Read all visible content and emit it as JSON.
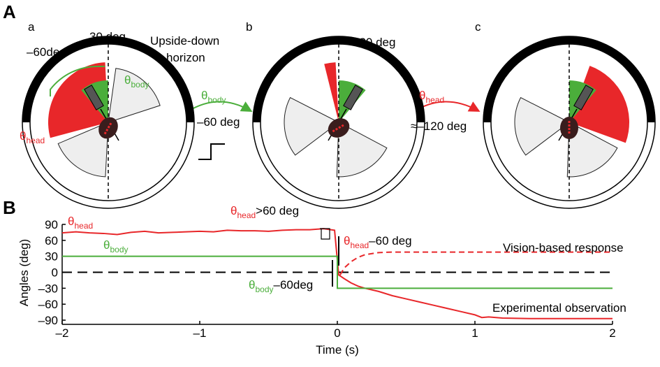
{
  "panel_labels": [
    "A",
    "B"
  ],
  "panel_a": {
    "letters": [
      "a",
      "b",
      "c"
    ],
    "texts": [
      {
        "parts": [
          "30 deg"
        ],
        "colors": [
          "#000"
        ]
      },
      {
        "parts": [
          "–60deg"
        ],
        "colors": [
          "#000"
        ]
      },
      {
        "parts": [
          "Upside-down"
        ],
        "colors": [
          "#000"
        ]
      },
      {
        "parts": [
          "horizon"
        ],
        "colors": [
          "#000"
        ]
      },
      {
        "parts": [
          "θ",
          "body"
        ],
        "colors": [
          "#4bae3b",
          "#4bae3b"
        ]
      },
      {
        "parts": [
          "θ",
          "head"
        ],
        "colors": [
          "#e8272a",
          "#e8272a"
        ]
      },
      {
        "parts": [
          "–30 deg"
        ],
        "colors": [
          "#000"
        ]
      },
      {
        "parts": [
          "θ",
          "body"
        ],
        "colors": [
          "#4bae3b",
          "#4bae3b"
        ]
      },
      {
        "parts": [
          "–60 deg"
        ],
        "colors": [
          "#000"
        ]
      },
      {
        "parts": [
          "θ",
          "head"
        ],
        "colors": [
          "#e8272a",
          "#e8272a"
        ]
      },
      {
        "parts": [
          "≈–120 deg"
        ],
        "colors": [
          "#000"
        ]
      }
    ]
  },
  "chart_data": {
    "type": "line",
    "xlabel": "Time (s)",
    "ylabel": "Angles (deg)",
    "xlim": [
      -2,
      2
    ],
    "xticks": [
      {
        "value": -2,
        "label": "–2"
      },
      {
        "value": -1,
        "label": "–1"
      },
      0,
      1,
      2
    ],
    "ylim": [
      -90,
      90
    ],
    "yticks": [
      {
        "value": -90,
        "label": "–90"
      },
      {
        "value": -60,
        "label": "–60"
      },
      {
        "value": -30,
        "label": "–30"
      },
      0,
      30,
      60,
      90
    ],
    "zero_line": true,
    "series": [
      {
        "color": "#e8272a",
        "dash": false,
        "x": [
          -2,
          -1.9,
          -1.8,
          -1.7,
          -1.6,
          -1.5,
          -1.4,
          -1.3,
          -1.2,
          -1.1,
          -1,
          -0.9,
          -0.8,
          -0.7,
          -0.6,
          -0.5,
          -0.4,
          -0.3,
          -0.2,
          -0.1,
          -0.02,
          0.01,
          0.05,
          0.1,
          0.15,
          0.2,
          0.3,
          0.4,
          0.5,
          0.6,
          0.7,
          0.8,
          0.9,
          1,
          1.05,
          1.1,
          1.2,
          1.4,
          1.6,
          1.8,
          2
        ],
        "values": [
          74,
          76,
          74,
          73,
          71,
          75,
          77,
          74,
          75,
          76,
          77,
          76,
          79,
          78,
          78,
          77,
          79,
          80,
          80,
          82,
          79,
          -5,
          -12,
          -20,
          -26,
          -30,
          -36,
          -44,
          -50,
          -56,
          -62,
          -68,
          -74,
          -80,
          -85,
          -84,
          -86,
          -87,
          -87,
          -87,
          -87
        ]
      },
      {
        "color": "#4bae3b",
        "dash": false,
        "x": [
          -2,
          0,
          0,
          2
        ],
        "values": [
          30,
          30,
          -30,
          -30
        ]
      },
      {
        "color": "#e8272a",
        "dash": true,
        "x": [
          0.02,
          0.05,
          0.1,
          0.15,
          0.2,
          0.3,
          0.4,
          0.6,
          1,
          2
        ],
        "values": [
          -5,
          8,
          20,
          28,
          33,
          37,
          38,
          38,
          38,
          38
        ]
      }
    ],
    "annotations": [
      {
        "parts": [
          "θ",
          "head"
        ],
        "colors": [
          "#e8272a",
          "#e8272a"
        ]
      },
      {
        "parts": [
          "θ",
          "body"
        ],
        "colors": [
          "#4bae3b",
          "#4bae3b"
        ]
      },
      {
        "parts": [
          "θ",
          "head",
          ">60 deg"
        ],
        "colors": [
          "#e8272a",
          "#e8272a",
          "#000"
        ]
      },
      {
        "parts": [
          "θ",
          "head",
          "–60 deg"
        ],
        "colors": [
          "#e8272a",
          "#e8272a",
          "#000"
        ]
      },
      {
        "parts": [
          "θ",
          "body",
          "–60deg"
        ],
        "colors": [
          "#4bae3b",
          "#4bae3b",
          "#000"
        ]
      },
      {
        "parts": [
          "Vision-based response"
        ],
        "colors": [
          "#000"
        ]
      },
      {
        "parts": [
          "Experimental observation"
        ],
        "colors": [
          "#000"
        ]
      }
    ]
  }
}
